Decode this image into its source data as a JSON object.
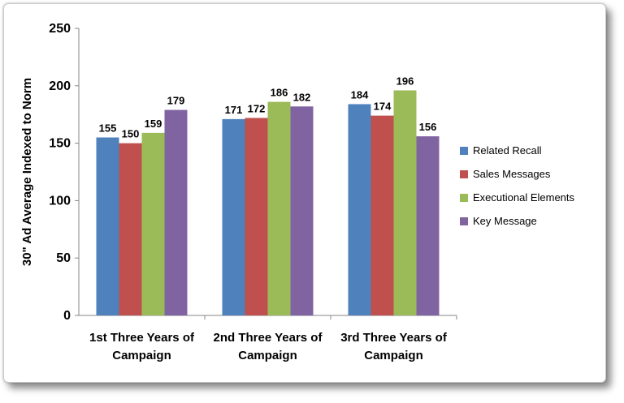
{
  "chart_data": {
    "type": "bar",
    "title": "",
    "xlabel": "",
    "ylabel": "30\" Ad Average Indexed to Norm",
    "ylim": [
      0,
      250
    ],
    "yticks": [
      0,
      50,
      100,
      150,
      200,
      250
    ],
    "grid": false,
    "legend_position": "right",
    "categories": [
      [
        "1st Three Years of",
        "Campaign"
      ],
      [
        "2nd Three Years of",
        "Campaign"
      ],
      [
        "3rd Three Years of",
        "Campaign"
      ]
    ],
    "series": [
      {
        "name": "Related Recall",
        "color": "#4f81bd",
        "values": [
          155,
          171,
          184
        ]
      },
      {
        "name": "Sales Messages",
        "color": "#c0504d",
        "values": [
          150,
          172,
          174
        ]
      },
      {
        "name": "Executional Elements",
        "color": "#9bbb59",
        "values": [
          159,
          186,
          196
        ]
      },
      {
        "name": "Key Message",
        "color": "#8064a2",
        "values": [
          179,
          182,
          156
        ]
      }
    ]
  }
}
